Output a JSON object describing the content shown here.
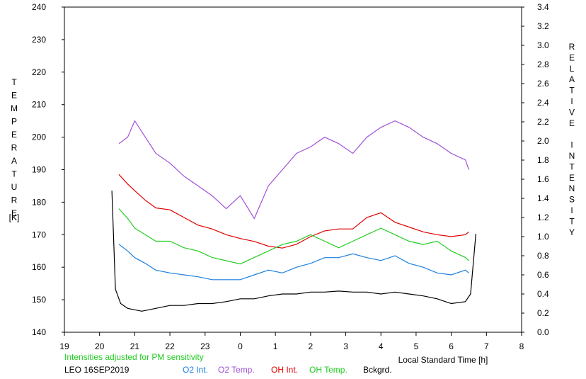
{
  "chart_data": {
    "type": "line",
    "y_left": {
      "label": "TEMPERATURE",
      "unit": "[K]",
      "ticks": [
        "140",
        "150",
        "160",
        "170",
        "180",
        "190",
        "200",
        "210",
        "220",
        "230",
        "240"
      ],
      "range": [
        140,
        240
      ]
    },
    "y_right": {
      "label": "RELATIVE INTENSITY",
      "ticks": [
        "0.0",
        "0.2",
        "0.4",
        "0.6",
        "0.8",
        "1.0",
        "1.2",
        "1.4",
        "1.6",
        "1.8",
        "2.0",
        "2.2",
        "2.4",
        "2.6",
        "2.8",
        "3.0",
        "3.2",
        "3.4"
      ],
      "range": [
        0,
        3.4
      ]
    },
    "x": {
      "label": "Local Standard Time [h]",
      "ticks": [
        "19",
        "20",
        "21",
        "22",
        "23",
        "0",
        "1",
        "2",
        "3",
        "4",
        "5",
        "6",
        "7",
        "8"
      ]
    },
    "note": "Intensities adjusted for PM sensitivity",
    "station_date": "LEO 16SEP2019",
    "series": [
      {
        "name": "O2 Int.",
        "color": "#1a7fe0",
        "axis": "right",
        "points": [
          [
            20.55,
            0.92
          ],
          [
            20.8,
            0.85
          ],
          [
            21.0,
            0.78
          ],
          [
            21.3,
            0.72
          ],
          [
            21.6,
            0.65
          ],
          [
            22.0,
            0.62
          ],
          [
            22.4,
            0.6
          ],
          [
            22.8,
            0.58
          ],
          [
            23.2,
            0.55
          ],
          [
            23.6,
            0.55
          ],
          [
            24.0,
            0.55
          ],
          [
            24.4,
            0.6
          ],
          [
            24.8,
            0.65
          ],
          [
            25.2,
            0.62
          ],
          [
            25.6,
            0.68
          ],
          [
            26.0,
            0.72
          ],
          [
            26.4,
            0.78
          ],
          [
            26.8,
            0.78
          ],
          [
            27.2,
            0.82
          ],
          [
            27.6,
            0.78
          ],
          [
            28.0,
            0.75
          ],
          [
            28.4,
            0.8
          ],
          [
            28.8,
            0.72
          ],
          [
            29.2,
            0.68
          ],
          [
            29.6,
            0.62
          ],
          [
            30.0,
            0.6
          ],
          [
            30.4,
            0.65
          ],
          [
            30.5,
            0.62
          ]
        ]
      },
      {
        "name": "O2 Temp.",
        "color": "#a050d8",
        "axis": "left",
        "points": [
          [
            20.55,
            198
          ],
          [
            20.8,
            200
          ],
          [
            21.0,
            205
          ],
          [
            21.3,
            200
          ],
          [
            21.6,
            195
          ],
          [
            22.0,
            192
          ],
          [
            22.4,
            188
          ],
          [
            22.8,
            185
          ],
          [
            23.2,
            182
          ],
          [
            23.6,
            178
          ],
          [
            24.0,
            182
          ],
          [
            24.4,
            175
          ],
          [
            24.8,
            185
          ],
          [
            25.2,
            190
          ],
          [
            25.6,
            195
          ],
          [
            26.0,
            197
          ],
          [
            26.4,
            200
          ],
          [
            26.8,
            198
          ],
          [
            27.2,
            195
          ],
          [
            27.6,
            200
          ],
          [
            28.0,
            203
          ],
          [
            28.4,
            205
          ],
          [
            28.8,
            203
          ],
          [
            29.2,
            200
          ],
          [
            29.6,
            198
          ],
          [
            30.0,
            195
          ],
          [
            30.4,
            193
          ],
          [
            30.5,
            190
          ]
        ]
      },
      {
        "name": "OH Int.",
        "color": "#e00000",
        "axis": "right",
        "points": [
          [
            20.55,
            1.65
          ],
          [
            20.8,
            1.55
          ],
          [
            21.0,
            1.48
          ],
          [
            21.3,
            1.38
          ],
          [
            21.6,
            1.3
          ],
          [
            22.0,
            1.28
          ],
          [
            22.4,
            1.2
          ],
          [
            22.8,
            1.12
          ],
          [
            23.2,
            1.08
          ],
          [
            23.6,
            1.02
          ],
          [
            24.0,
            0.98
          ],
          [
            24.4,
            0.95
          ],
          [
            24.8,
            0.9
          ],
          [
            25.2,
            0.88
          ],
          [
            25.6,
            0.92
          ],
          [
            26.0,
            1.0
          ],
          [
            26.4,
            1.06
          ],
          [
            26.8,
            1.08
          ],
          [
            27.2,
            1.08
          ],
          [
            27.6,
            1.2
          ],
          [
            28.0,
            1.25
          ],
          [
            28.4,
            1.15
          ],
          [
            28.8,
            1.1
          ],
          [
            29.2,
            1.05
          ],
          [
            29.6,
            1.02
          ],
          [
            30.0,
            1.0
          ],
          [
            30.4,
            1.02
          ],
          [
            30.5,
            1.05
          ]
        ]
      },
      {
        "name": "OH Temp.",
        "color": "#22cc22",
        "axis": "left",
        "points": [
          [
            20.55,
            178
          ],
          [
            20.8,
            175
          ],
          [
            21.0,
            172
          ],
          [
            21.3,
            170
          ],
          [
            21.6,
            168
          ],
          [
            22.0,
            168
          ],
          [
            22.4,
            166
          ],
          [
            22.8,
            165
          ],
          [
            23.2,
            163
          ],
          [
            23.6,
            162
          ],
          [
            24.0,
            161
          ],
          [
            24.4,
            163
          ],
          [
            24.8,
            165
          ],
          [
            25.2,
            167
          ],
          [
            25.6,
            168
          ],
          [
            26.0,
            170
          ],
          [
            26.4,
            168
          ],
          [
            26.8,
            166
          ],
          [
            27.2,
            168
          ],
          [
            27.6,
            170
          ],
          [
            28.0,
            172
          ],
          [
            28.4,
            170
          ],
          [
            28.8,
            168
          ],
          [
            29.2,
            167
          ],
          [
            29.6,
            168
          ],
          [
            30.0,
            165
          ],
          [
            30.4,
            163
          ],
          [
            30.5,
            162
          ]
        ]
      },
      {
        "name": "Bckgrd.",
        "color": "#000000",
        "axis": "right",
        "points": [
          [
            20.35,
            1.48
          ],
          [
            20.45,
            0.45
          ],
          [
            20.6,
            0.3
          ],
          [
            20.8,
            0.25
          ],
          [
            21.2,
            0.22
          ],
          [
            21.6,
            0.25
          ],
          [
            22.0,
            0.28
          ],
          [
            22.4,
            0.28
          ],
          [
            22.8,
            0.3
          ],
          [
            23.2,
            0.3
          ],
          [
            23.6,
            0.32
          ],
          [
            24.0,
            0.35
          ],
          [
            24.4,
            0.35
          ],
          [
            24.8,
            0.38
          ],
          [
            25.2,
            0.4
          ],
          [
            25.6,
            0.4
          ],
          [
            26.0,
            0.42
          ],
          [
            26.4,
            0.42
          ],
          [
            26.8,
            0.43
          ],
          [
            27.2,
            0.42
          ],
          [
            27.6,
            0.42
          ],
          [
            28.0,
            0.4
          ],
          [
            28.4,
            0.42
          ],
          [
            28.8,
            0.4
          ],
          [
            29.2,
            0.38
          ],
          [
            29.6,
            0.35
          ],
          [
            30.0,
            0.3
          ],
          [
            30.4,
            0.32
          ],
          [
            30.55,
            0.4
          ],
          [
            30.7,
            1.03
          ]
        ]
      }
    ]
  }
}
